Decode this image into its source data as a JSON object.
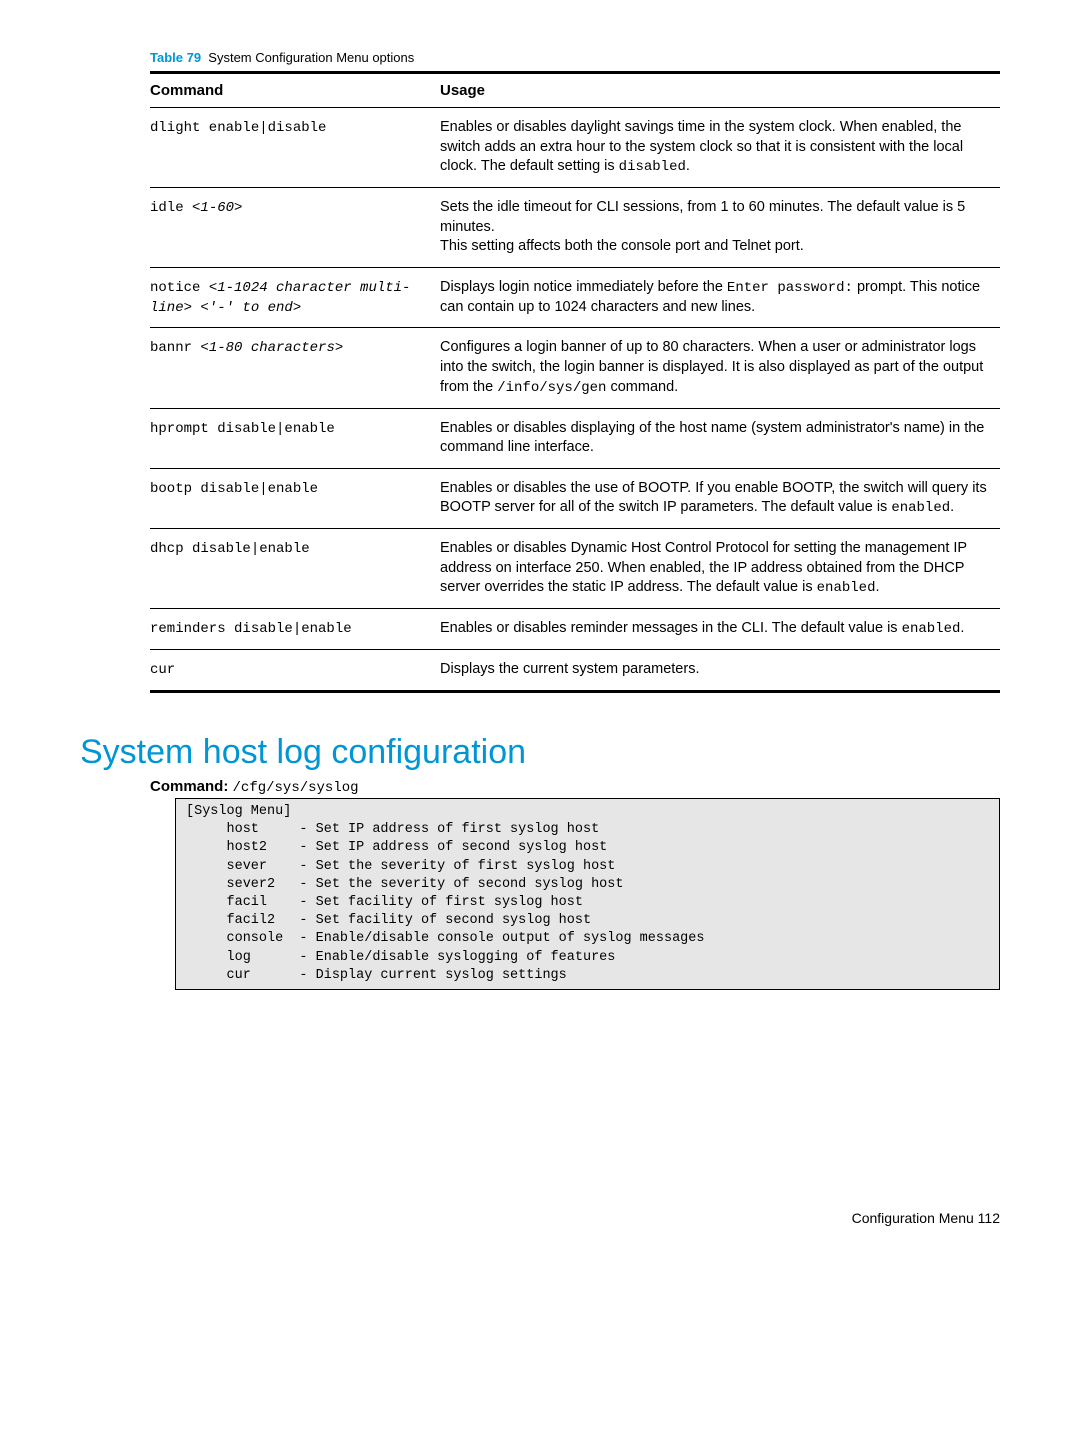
{
  "table": {
    "caption_label": "Table 79",
    "caption_text": "System Configuration Menu options",
    "headers": {
      "col1": "Command",
      "col2": "Usage"
    },
    "rows": [
      {
        "cmd_html": "<span class='mono'>dlight enable|disable</span>",
        "usage_html": "Enables or disables daylight savings time in the system clock. When enabled, the switch adds an extra hour to the system clock so that it is consistent with the local clock. The default setting is <span class='mono'>disabled</span>."
      },
      {
        "cmd_html": "<span class='mono'>idle </span><span class='italic-mono'>&lt;1-60&gt;</span>",
        "usage_html": "Sets the idle timeout for CLI sessions, from 1 to 60 minutes. The default value is 5 minutes.<br>This setting affects both the console port and Telnet port."
      },
      {
        "cmd_html": "<span class='mono'>notice </span><span class='italic-mono'>&lt;1-1024 character multi-line&gt; &lt;'-' to end&gt;</span>",
        "usage_html": "Displays login notice immediately before the <span class='mono'>Enter password:</span> prompt. This notice can contain up to 1024 characters and new lines."
      },
      {
        "cmd_html": "<span class='mono'>bannr </span><span class='italic-mono'>&lt;1-80 characters&gt;</span>",
        "usage_html": "Configures a login banner of up to 80 characters. When a user or administrator logs into the switch, the login banner is displayed. It is also displayed as part of the output from the <span class='mono'>/info/sys/gen</span> command."
      },
      {
        "cmd_html": "<span class='mono'>hprompt disable|enable</span>",
        "usage_html": "Enables or disables displaying of the host name (system administrator's name) in the command line interface."
      },
      {
        "cmd_html": "<span class='mono'>bootp disable|enable</span>",
        "usage_html": "Enables or disables the use of BOOTP. If you enable BOOTP, the switch will query its BOOTP server for all of the switch IP parameters. The default value is <span class='mono'>enabled</span>."
      },
      {
        "cmd_html": "<span class='mono'>dhcp disable|enable</span>",
        "usage_html": "Enables or disables Dynamic Host Control Protocol for setting the management IP address on interface 250. When enabled, the IP address obtained from the DHCP server overrides the static IP address. The default value is <span class='mono'>enabled</span>."
      },
      {
        "cmd_html": "<span class='mono'>reminders disable|enable</span>",
        "usage_html": "Enables or disables reminder messages in the CLI. The default value is <span class='mono'>enabled</span>."
      },
      {
        "cmd_html": "<span class='mono'>cur</span>",
        "usage_html": "Displays the current system parameters."
      }
    ]
  },
  "section": {
    "title": "System host log configuration",
    "cmd_label": "Command:",
    "cmd_text": "/cfg/sys/syslog",
    "code": "[Syslog Menu]\n     host     - Set IP address of first syslog host\n     host2    - Set IP address of second syslog host\n     sever    - Set the severity of first syslog host\n     sever2   - Set the severity of second syslog host\n     facil    - Set facility of first syslog host\n     facil2   - Set facility of second syslog host\n     console  - Enable/disable console output of syslog messages\n     log      - Enable/disable syslogging of features\n     cur      - Display current syslog settings"
  },
  "footer": "Configuration Menu   112"
}
